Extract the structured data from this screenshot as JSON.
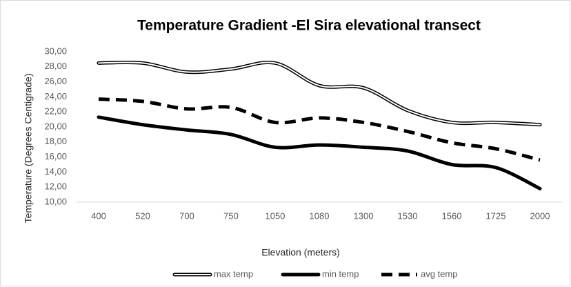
{
  "chart_data": {
    "type": "line",
    "title": "Temperature Gradient -El Sira elevational transect",
    "x_label": "Elevation (meters)",
    "y_label": "Temperature (Degrees Centigrade)",
    "categories": [
      "400",
      "520",
      "700",
      "750",
      "1050",
      "1080",
      "1300",
      "1530",
      "1560",
      "1725",
      "2000"
    ],
    "series": [
      {
        "name": "max temp",
        "color": "#000000",
        "line_style": "double",
        "values": [
          28.5,
          28.5,
          27.3,
          27.7,
          28.5,
          25.5,
          25.2,
          22.2,
          20.6,
          20.6,
          20.3
        ]
      },
      {
        "name": "min temp",
        "color": "#000000",
        "line_style": "solid",
        "values": [
          21.3,
          20.3,
          19.6,
          19.0,
          17.3,
          17.6,
          17.3,
          16.8,
          15.0,
          14.6,
          11.8
        ]
      },
      {
        "name": "avg temp",
        "color": "#000000",
        "line_style": "dashed",
        "values": [
          23.7,
          23.4,
          22.4,
          22.6,
          20.6,
          21.2,
          20.6,
          19.4,
          17.9,
          17.1,
          15.6
        ]
      }
    ],
    "ylim": [
      10,
      30
    ],
    "yticks": [
      {
        "value": 10,
        "label": "10,00"
      },
      {
        "value": 12,
        "label": "12,00"
      },
      {
        "value": 14,
        "label": "14,00"
      },
      {
        "value": 16,
        "label": "16,00"
      },
      {
        "value": 18,
        "label": "18,00"
      },
      {
        "value": 20,
        "label": "20,00"
      },
      {
        "value": 22,
        "label": "22,00"
      },
      {
        "value": 24,
        "label": "24,00"
      },
      {
        "value": 26,
        "label": "26,00"
      },
      {
        "value": 28,
        "label": "28,00"
      },
      {
        "value": 30,
        "label": "30,00"
      }
    ],
    "grid": false,
    "legend": "bottom"
  }
}
